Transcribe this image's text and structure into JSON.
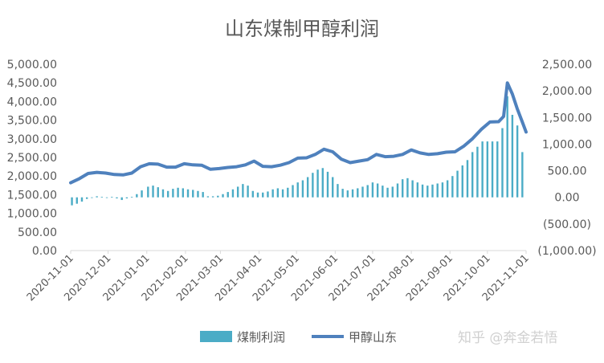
{
  "chart_data": {
    "type": "bar+line",
    "title": "山东煤制甲醇利润",
    "x_ticks": [
      "2020-11-01",
      "2020-12-01",
      "2021-01-01",
      "2021-02-01",
      "2021-03-01",
      "2021-04-01",
      "2021-05-01",
      "2021-06-01",
      "2021-07-01",
      "2021-08-01",
      "2021-09-01",
      "2021-10-01",
      "2021-11-01"
    ],
    "y_left": {
      "ticks": [
        "5,000.00",
        "4,500.00",
        "4,000.00",
        "3,500.00",
        "3,000.00",
        "2,500.00",
        "2,000.00",
        "1,500.00",
        "1,000.00",
        "500.00",
        "0.00"
      ],
      "ylim": [
        0,
        5000
      ]
    },
    "y_right": {
      "ticks": [
        "2,500.00",
        "2,000.00",
        "1,500.00",
        "1,000.00",
        "500.00",
        "0.00",
        "(500.00)",
        "(1,000.00)"
      ],
      "ylim": [
        -1000,
        2500
      ]
    },
    "series": [
      {
        "name": "煤制利润",
        "type": "bar",
        "axis": "right",
        "color": "#4bacc6",
        "points": [
          [
            "2020-11-02",
            -150
          ],
          [
            "2020-11-06",
            -120
          ],
          [
            "2020-11-10",
            -80
          ],
          [
            "2020-11-14",
            -30
          ],
          [
            "2020-11-18",
            0
          ],
          [
            "2020-11-22",
            20
          ],
          [
            "2020-11-26",
            10
          ],
          [
            "2020-11-30",
            0
          ],
          [
            "2020-12-04",
            10
          ],
          [
            "2020-12-08",
            -20
          ],
          [
            "2020-12-12",
            -50
          ],
          [
            "2020-12-16",
            -20
          ],
          [
            "2020-12-20",
            10
          ],
          [
            "2020-12-24",
            60
          ],
          [
            "2020-12-28",
            130
          ],
          [
            "2021-01-02",
            200
          ],
          [
            "2021-01-06",
            220
          ],
          [
            "2021-01-10",
            190
          ],
          [
            "2021-01-14",
            150
          ],
          [
            "2021-01-18",
            120
          ],
          [
            "2021-01-22",
            160
          ],
          [
            "2021-01-26",
            180
          ],
          [
            "2021-01-30",
            170
          ],
          [
            "2021-02-03",
            150
          ],
          [
            "2021-02-07",
            140
          ],
          [
            "2021-02-11",
            120
          ],
          [
            "2021-02-15",
            100
          ],
          [
            "2021-02-19",
            20
          ],
          [
            "2021-02-23",
            20
          ],
          [
            "2021-02-27",
            30
          ],
          [
            "2021-03-03",
            60
          ],
          [
            "2021-03-07",
            100
          ],
          [
            "2021-03-11",
            150
          ],
          [
            "2021-03-15",
            200
          ],
          [
            "2021-03-19",
            250
          ],
          [
            "2021-03-23",
            220
          ],
          [
            "2021-03-27",
            120
          ],
          [
            "2021-03-31",
            90
          ],
          [
            "2021-04-04",
            90
          ],
          [
            "2021-04-08",
            110
          ],
          [
            "2021-04-12",
            150
          ],
          [
            "2021-04-16",
            170
          ],
          [
            "2021-04-20",
            150
          ],
          [
            "2021-04-24",
            180
          ],
          [
            "2021-04-28",
            230
          ],
          [
            "2021-05-02",
            280
          ],
          [
            "2021-05-06",
            320
          ],
          [
            "2021-05-10",
            380
          ],
          [
            "2021-05-14",
            460
          ],
          [
            "2021-05-18",
            520
          ],
          [
            "2021-05-22",
            550
          ],
          [
            "2021-05-26",
            480
          ],
          [
            "2021-05-30",
            380
          ],
          [
            "2021-06-03",
            250
          ],
          [
            "2021-06-07",
            160
          ],
          [
            "2021-06-11",
            130
          ],
          [
            "2021-06-15",
            150
          ],
          [
            "2021-06-19",
            170
          ],
          [
            "2021-06-23",
            200
          ],
          [
            "2021-06-27",
            230
          ],
          [
            "2021-07-01",
            280
          ],
          [
            "2021-07-05",
            260
          ],
          [
            "2021-07-09",
            220
          ],
          [
            "2021-07-13",
            180
          ],
          [
            "2021-07-17",
            200
          ],
          [
            "2021-07-21",
            260
          ],
          [
            "2021-07-25",
            340
          ],
          [
            "2021-07-29",
            360
          ],
          [
            "2021-08-02",
            320
          ],
          [
            "2021-08-06",
            280
          ],
          [
            "2021-08-10",
            240
          ],
          [
            "2021-08-14",
            220
          ],
          [
            "2021-08-18",
            240
          ],
          [
            "2021-08-22",
            260
          ],
          [
            "2021-08-26",
            280
          ],
          [
            "2021-08-30",
            320
          ],
          [
            "2021-09-03",
            400
          ],
          [
            "2021-09-07",
            500
          ],
          [
            "2021-09-11",
            600
          ],
          [
            "2021-09-15",
            700
          ],
          [
            "2021-09-19",
            850
          ],
          [
            "2021-09-23",
            950
          ],
          [
            "2021-09-27",
            1050
          ],
          [
            "2021-10-01",
            1050
          ],
          [
            "2021-10-05",
            1050
          ],
          [
            "2021-10-09",
            1050
          ],
          [
            "2021-10-13",
            1300
          ],
          [
            "2021-10-17",
            1900
          ],
          [
            "2021-10-21",
            1550
          ],
          [
            "2021-10-25",
            1350
          ],
          [
            "2021-10-29",
            850
          ]
        ]
      },
      {
        "name": "甲醇山东",
        "type": "line",
        "axis": "left",
        "color": "#4f81bd",
        "points": [
          [
            "2020-11-01",
            1820
          ],
          [
            "2020-11-08",
            1930
          ],
          [
            "2020-11-15",
            2070
          ],
          [
            "2020-11-22",
            2100
          ],
          [
            "2020-11-29",
            2080
          ],
          [
            "2020-12-06",
            2040
          ],
          [
            "2020-12-13",
            2030
          ],
          [
            "2020-12-20",
            2080
          ],
          [
            "2020-12-27",
            2250
          ],
          [
            "2021-01-03",
            2330
          ],
          [
            "2021-01-10",
            2320
          ],
          [
            "2021-01-17",
            2240
          ],
          [
            "2021-01-24",
            2240
          ],
          [
            "2021-01-31",
            2330
          ],
          [
            "2021-02-07",
            2300
          ],
          [
            "2021-02-14",
            2290
          ],
          [
            "2021-02-21",
            2180
          ],
          [
            "2021-02-28",
            2200
          ],
          [
            "2021-03-07",
            2230
          ],
          [
            "2021-03-14",
            2250
          ],
          [
            "2021-03-21",
            2300
          ],
          [
            "2021-03-28",
            2400
          ],
          [
            "2021-04-04",
            2260
          ],
          [
            "2021-04-11",
            2250
          ],
          [
            "2021-04-18",
            2290
          ],
          [
            "2021-04-25",
            2360
          ],
          [
            "2021-05-02",
            2480
          ],
          [
            "2021-05-09",
            2490
          ],
          [
            "2021-05-16",
            2580
          ],
          [
            "2021-05-23",
            2720
          ],
          [
            "2021-05-30",
            2650
          ],
          [
            "2021-06-06",
            2450
          ],
          [
            "2021-06-13",
            2360
          ],
          [
            "2021-06-20",
            2400
          ],
          [
            "2021-06-27",
            2440
          ],
          [
            "2021-07-04",
            2580
          ],
          [
            "2021-07-11",
            2520
          ],
          [
            "2021-07-18",
            2530
          ],
          [
            "2021-07-25",
            2580
          ],
          [
            "2021-08-01",
            2700
          ],
          [
            "2021-08-08",
            2620
          ],
          [
            "2021-08-15",
            2580
          ],
          [
            "2021-08-22",
            2600
          ],
          [
            "2021-08-29",
            2640
          ],
          [
            "2021-09-05",
            2650
          ],
          [
            "2021-09-12",
            2800
          ],
          [
            "2021-09-19",
            3000
          ],
          [
            "2021-09-26",
            3250
          ],
          [
            "2021-10-03",
            3450
          ],
          [
            "2021-10-10",
            3460
          ],
          [
            "2021-10-14",
            3600
          ],
          [
            "2021-10-17",
            4500
          ],
          [
            "2021-10-21",
            4200
          ],
          [
            "2021-10-25",
            3800
          ],
          [
            "2021-10-29",
            3450
          ],
          [
            "2021-11-01",
            3180
          ]
        ]
      }
    ],
    "legend_position": "bottom",
    "grid": false
  },
  "watermark": "知乎 @奔金若悟"
}
